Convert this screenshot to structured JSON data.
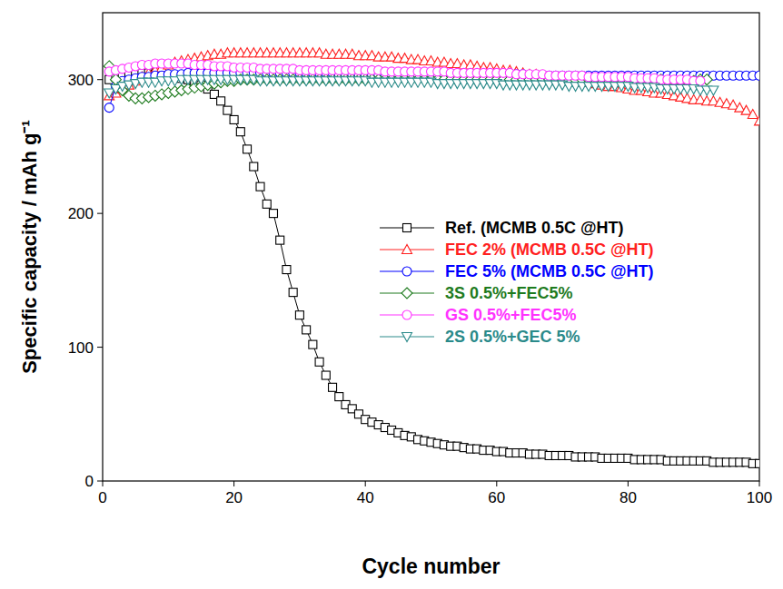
{
  "chart_data": {
    "type": "line",
    "x_label": "Cycle number",
    "y_label": "Specific capacity / mAh g⁻¹",
    "xlim": [
      0,
      100
    ],
    "ylim": [
      0,
      350
    ],
    "xticks": [
      0,
      20,
      40,
      60,
      80,
      100
    ],
    "yticks": [
      0,
      100,
      200,
      300
    ],
    "grid": false,
    "legend": "right",
    "x": [
      1,
      2,
      3,
      4,
      5,
      6,
      7,
      8,
      9,
      10,
      11,
      12,
      13,
      14,
      15,
      16,
      17,
      18,
      19,
      20,
      21,
      22,
      23,
      24,
      25,
      26,
      27,
      28,
      29,
      30,
      31,
      32,
      33,
      34,
      35,
      36,
      37,
      38,
      39,
      40,
      41,
      42,
      43,
      44,
      45,
      46,
      47,
      48,
      49,
      50,
      51,
      52,
      53,
      54,
      55,
      56,
      57,
      58,
      59,
      60,
      61,
      62,
      63,
      64,
      65,
      66,
      67,
      68,
      69,
      70,
      71,
      72,
      73,
      74,
      75,
      76,
      77,
      78,
      79,
      80,
      81,
      82,
      83,
      84,
      85,
      86,
      87,
      88,
      89,
      90,
      91,
      92,
      93,
      94,
      95,
      96,
      97,
      98,
      99,
      100
    ],
    "series": [
      {
        "name": "Ref. (MCMB 0.5C @HT)",
        "color": "#000000",
        "marker": "square",
        "values": [
          300,
          302,
          303,
          304,
          305,
          305,
          305,
          304,
          304,
          303,
          302,
          301,
          300,
          298,
          296,
          293,
          289,
          284,
          277,
          270,
          261,
          248,
          235,
          220,
          207,
          200,
          180,
          158,
          141,
          124,
          113,
          102,
          89,
          79,
          70,
          63,
          57,
          54,
          50,
          46,
          44,
          42,
          40,
          38,
          36,
          34,
          33,
          31,
          30,
          29,
          28,
          27,
          26,
          26,
          25,
          24,
          24,
          23,
          23,
          22,
          22,
          21,
          21,
          21,
          20,
          20,
          20,
          19,
          19,
          19,
          19,
          18,
          18,
          18,
          18,
          17,
          17,
          17,
          17,
          17,
          16,
          16,
          16,
          16,
          16,
          15,
          15,
          15,
          15,
          15,
          15,
          15,
          14,
          14,
          14,
          14,
          14,
          14,
          13,
          13
        ]
      },
      {
        "name": "FEC 2% (MCMB 0.5C @HT)",
        "color": "#ff2020",
        "marker": "triangle",
        "values": [
          288,
          290,
          293,
          296,
          299,
          302,
          305,
          307,
          309,
          311,
          313,
          314,
          315,
          316,
          317,
          318,
          319,
          319,
          320,
          320,
          320,
          320,
          320,
          320,
          320,
          320,
          320,
          320,
          320,
          320,
          320,
          320,
          320,
          319,
          319,
          319,
          319,
          319,
          318,
          318,
          318,
          317,
          317,
          317,
          316,
          316,
          315,
          315,
          314,
          314,
          313,
          313,
          312,
          312,
          311,
          311,
          310,
          309,
          309,
          308,
          307,
          307,
          306,
          305,
          304,
          304,
          303,
          302,
          301,
          300,
          300,
          299,
          298,
          298,
          297,
          296,
          295,
          295,
          294,
          293,
          292,
          292,
          291,
          290,
          290,
          289,
          288,
          287,
          286,
          285,
          285,
          284,
          284,
          283,
          282,
          281,
          279,
          277,
          274,
          269
        ]
      },
      {
        "name": "FEC 5% (MCMB 0.5C @HT)",
        "color": "#0000ff",
        "marker": "circle",
        "values": [
          279,
          295,
          299,
          300,
          301,
          302,
          302,
          303,
          303,
          304,
          304,
          304,
          305,
          305,
          305,
          305,
          305,
          305,
          305,
          305,
          305,
          305,
          305,
          305,
          305,
          305,
          305,
          305,
          305,
          305,
          305,
          305,
          305,
          305,
          305,
          304,
          304,
          304,
          304,
          304,
          304,
          304,
          304,
          304,
          304,
          304,
          304,
          304,
          304,
          304,
          304,
          304,
          304,
          304,
          304,
          304,
          304,
          304,
          304,
          304,
          304,
          304,
          304,
          304,
          303,
          303,
          303,
          303,
          303,
          303,
          303,
          303,
          303,
          303,
          303,
          303,
          303,
          303,
          303,
          303,
          303,
          303,
          303,
          303,
          303,
          303,
          303,
          303,
          303,
          303,
          303,
          303,
          303,
          303,
          303,
          303,
          303,
          303,
          303,
          303
        ]
      },
      {
        "name": "3S 0.5%+FEC5%",
        "color": "#1e7b1e",
        "marker": "diamond",
        "values": [
          310,
          300,
          292,
          288,
          286,
          286,
          287,
          288,
          289,
          290,
          291,
          292,
          293,
          294,
          295,
          296,
          297,
          298,
          299,
          299,
          300,
          300,
          300,
          300,
          300,
          300,
          300,
          300,
          300,
          300,
          300,
          300,
          300,
          300,
          300,
          300,
          300,
          300,
          300,
          300,
          300,
          300,
          300,
          300,
          300,
          300,
          300,
          300,
          300,
          300,
          300,
          300,
          300,
          300,
          300,
          300,
          300,
          300,
          300,
          300,
          300,
          300,
          300,
          300,
          300,
          300,
          300,
          300,
          300,
          300,
          300,
          300,
          300,
          300,
          300,
          300,
          300,
          300,
          300,
          300,
          300,
          300,
          300,
          300,
          300,
          299,
          299,
          299,
          299,
          299,
          300,
          300,
          null,
          null,
          null,
          null,
          null,
          null,
          null,
          null
        ]
      },
      {
        "name": "GS 0.5%+FEC5%",
        "color": "#ff33ff",
        "marker": "circle",
        "values": [
          306,
          307,
          308,
          309,
          310,
          311,
          311,
          312,
          312,
          312,
          312,
          312,
          312,
          311,
          311,
          311,
          310,
          310,
          310,
          309,
          309,
          309,
          309,
          308,
          308,
          308,
          308,
          308,
          308,
          307,
          307,
          307,
          307,
          307,
          307,
          307,
          307,
          307,
          307,
          307,
          307,
          307,
          306,
          306,
          306,
          306,
          306,
          306,
          306,
          306,
          306,
          306,
          305,
          305,
          305,
          305,
          305,
          305,
          305,
          305,
          305,
          305,
          304,
          304,
          304,
          304,
          304,
          303,
          303,
          303,
          303,
          303,
          303,
          302,
          302,
          302,
          302,
          302,
          302,
          302,
          301,
          301,
          301,
          301,
          300,
          300,
          300,
          300,
          300,
          299,
          299,
          null,
          null,
          null,
          null,
          null,
          null,
          null,
          null,
          null
        ]
      },
      {
        "name": "2S 0.5%+GEC 5%",
        "color": "#2a8a8a",
        "marker": "triangle-down",
        "values": [
          290,
          293,
          295,
          296,
          297,
          298,
          298,
          298,
          299,
          299,
          299,
          300,
          300,
          300,
          300,
          300,
          300,
          300,
          300,
          300,
          300,
          300,
          300,
          299,
          299,
          299,
          299,
          299,
          299,
          299,
          299,
          299,
          299,
          299,
          299,
          299,
          299,
          299,
          299,
          299,
          298,
          298,
          298,
          298,
          298,
          298,
          298,
          298,
          298,
          298,
          297,
          297,
          297,
          297,
          297,
          297,
          297,
          297,
          297,
          297,
          296,
          296,
          296,
          296,
          296,
          296,
          296,
          296,
          296,
          296,
          295,
          295,
          295,
          295,
          295,
          295,
          295,
          295,
          295,
          295,
          294,
          294,
          294,
          294,
          293,
          293,
          293,
          293,
          293,
          293,
          292,
          292,
          292,
          null,
          null,
          null,
          null,
          null,
          null,
          null
        ]
      }
    ]
  }
}
